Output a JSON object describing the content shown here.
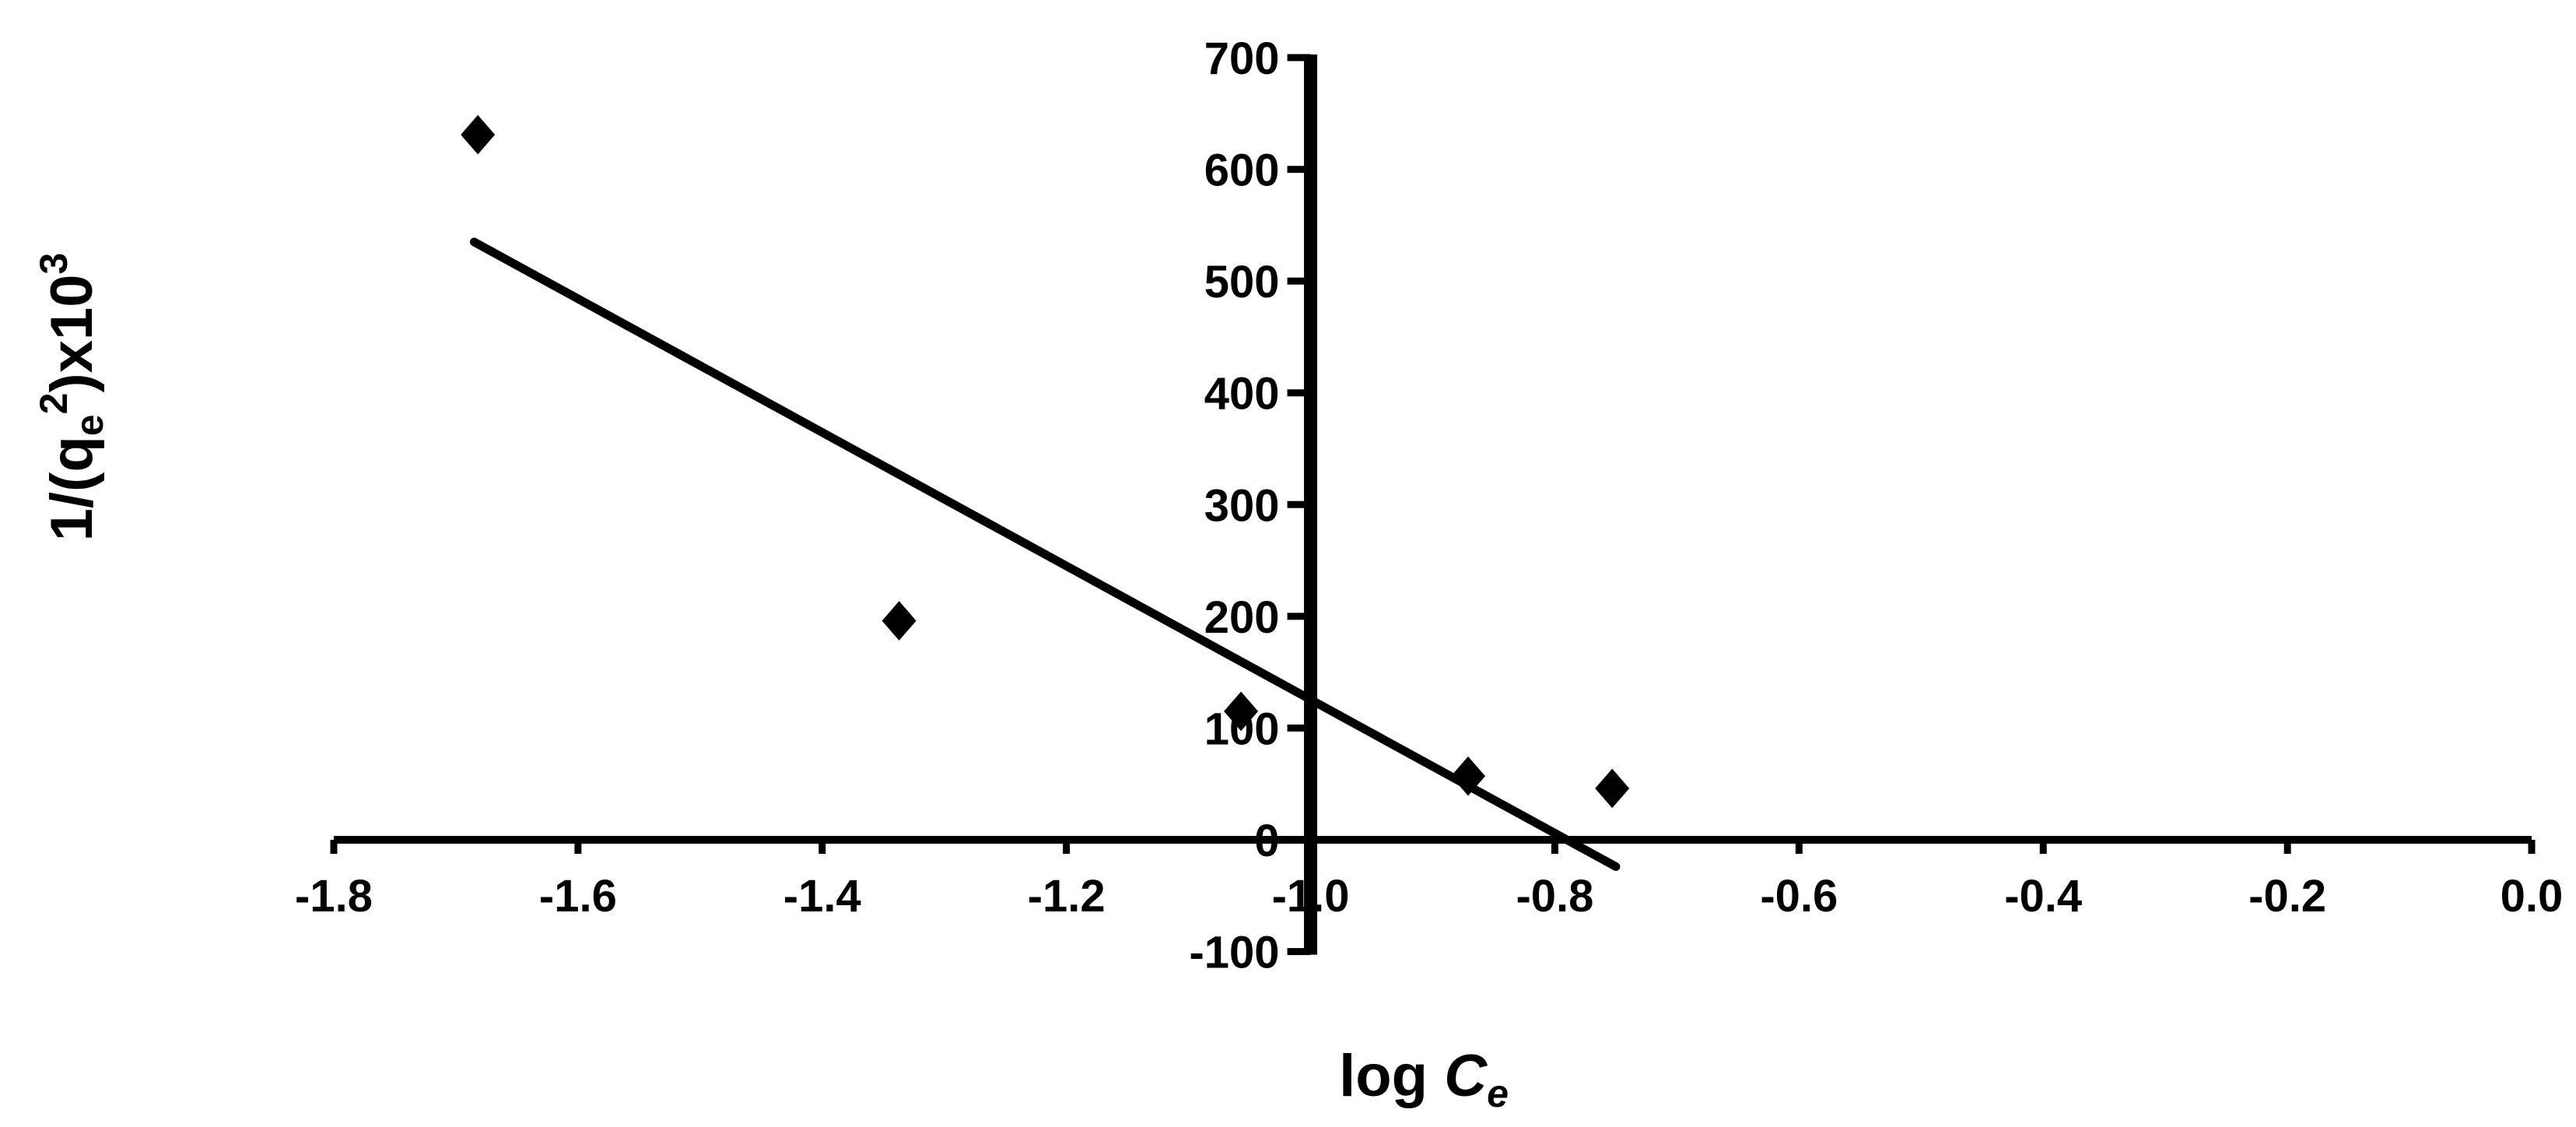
{
  "chart_data": {
    "type": "scatter",
    "title": "",
    "xlabel": "log C_e",
    "xlabel_parts": {
      "main": "log ",
      "var": "C",
      "sub": "e"
    },
    "ylabel": "1/(q_e^2)x10^3",
    "ylabel_parts": {
      "a": "1/(q",
      "sub": "e",
      "sup": "2",
      "b": ")x10",
      "sup2": "3"
    },
    "xlim": [
      -1.8,
      0.0
    ],
    "ylim": [
      -100,
      700
    ],
    "x_ticks": [
      "-1.8",
      "-1.6",
      "-1.4",
      "-1.2",
      "-1.0",
      "-0.8",
      "-0.6",
      "-0.4",
      "-0.2",
      "0.0"
    ],
    "y_ticks": [
      "700",
      "600",
      "500",
      "400",
      "300",
      "200",
      "100",
      "0",
      "-100"
    ],
    "grid": false,
    "marker": "diamond",
    "color": "#000000",
    "points": [
      {
        "x": -1.682,
        "y": 631
      },
      {
        "x": -1.337,
        "y": 196
      },
      {
        "x": -1.057,
        "y": 115
      },
      {
        "x": -0.871,
        "y": 57
      },
      {
        "x": -0.753,
        "y": 46
      }
    ],
    "trendline": {
      "x": [
        -1.685,
        -0.75
      ],
      "y": [
        535,
        -24
      ]
    }
  }
}
